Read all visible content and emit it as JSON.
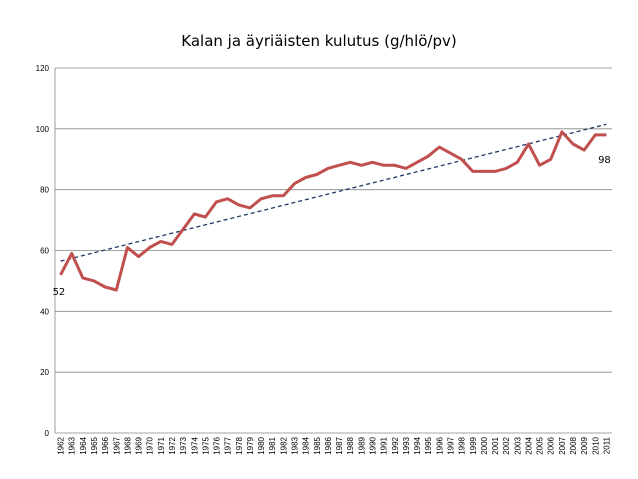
{
  "chart_data": {
    "type": "line",
    "title": "Kalan ja äyriäisten kulutus (g/hlö/pv)",
    "xlabel": "",
    "ylabel": "",
    "ylim": [
      0,
      120
    ],
    "yticks": [
      0,
      20,
      40,
      60,
      80,
      100,
      120
    ],
    "grid": true,
    "legend": "none",
    "x": [
      "1962",
      "1963",
      "1964",
      "1965",
      "1966",
      "1967",
      "1968",
      "1969",
      "1970",
      "1971",
      "1972",
      "1973",
      "1974",
      "1975",
      "1976",
      "1977",
      "1978",
      "1979",
      "1980",
      "1981",
      "1982",
      "1983",
      "1984",
      "1985",
      "1986",
      "1987",
      "1988",
      "1989",
      "1990",
      "1991",
      "1992",
      "1993",
      "1994",
      "1995",
      "1996",
      "1997",
      "1998",
      "1999",
      "2000",
      "2001",
      "2002",
      "2003",
      "2004",
      "2005",
      "2006",
      "2007",
      "2008",
      "2009",
      "2010",
      "2011"
    ],
    "series": [
      {
        "color": "#c0504d",
        "values": [
          52,
          59,
          51,
          50,
          48,
          47,
          61,
          58,
          61,
          63,
          62,
          67,
          72,
          71,
          76,
          77,
          75,
          74,
          77,
          78,
          78,
          82,
          84,
          85,
          87,
          88,
          89,
          88,
          89,
          88,
          88,
          87,
          89,
          91,
          94,
          92,
          90,
          86,
          86,
          86,
          87,
          89,
          95,
          88,
          90,
          99,
          95,
          93,
          98,
          98
        ]
      }
    ],
    "trendline": {
      "style": "dashed",
      "color": "#1f3864",
      "start": 56.5,
      "end": 101.5
    },
    "annotations": [
      {
        "text": "52",
        "index": 0
      },
      {
        "text": "98",
        "index": 49
      }
    ]
  }
}
